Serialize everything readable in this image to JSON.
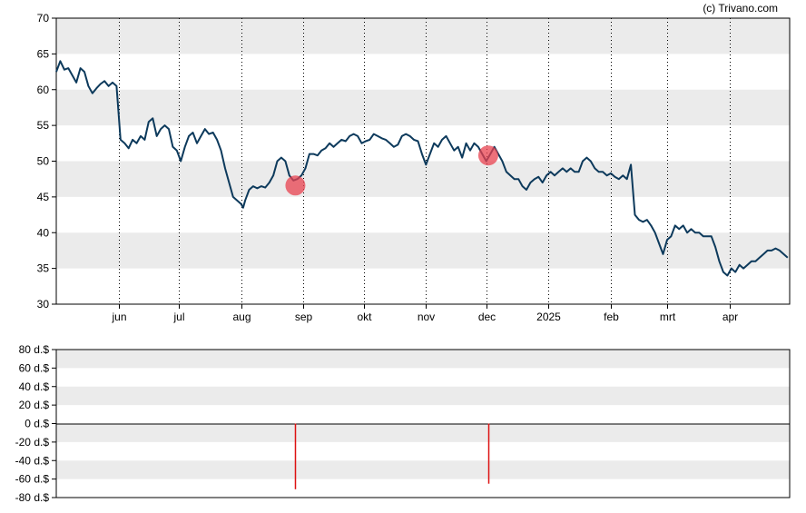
{
  "credit": "(c) Trivano.com",
  "colors": {
    "price_line": "#0d3a5c",
    "marker": "#e8414f",
    "band": "#ebebeb",
    "bar": "#dd1111",
    "grid": "#000000"
  },
  "chart_data": [
    {
      "type": "line",
      "title": "",
      "ylim": [
        30,
        70
      ],
      "yticks": [
        30,
        35,
        40,
        45,
        50,
        55,
        60,
        65,
        70
      ],
      "xlim": [
        0,
        365
      ],
      "month_ticks": [
        {
          "label": "jun",
          "x": 31
        },
        {
          "label": "jul",
          "x": 61
        },
        {
          "label": "aug",
          "x": 92
        },
        {
          "label": "sep",
          "x": 123
        },
        {
          "label": "okt",
          "x": 153
        },
        {
          "label": "nov",
          "x": 184
        },
        {
          "label": "dec",
          "x": 214
        },
        {
          "label": "2025",
          "x": 245
        },
        {
          "label": "feb",
          "x": 276
        },
        {
          "label": "mrt",
          "x": 304
        },
        {
          "label": "apr",
          "x": 335
        }
      ],
      "grid": "vertical dotted at month starts, horizontal alternating bands",
      "series": [
        {
          "values": [
            [
              0,
              62.5
            ],
            [
              2,
              64
            ],
            [
              4,
              62.8
            ],
            [
              6,
              63
            ],
            [
              8,
              62
            ],
            [
              10,
              61
            ],
            [
              12,
              63
            ],
            [
              14,
              62.5
            ],
            [
              16,
              60.5
            ],
            [
              18,
              59.5
            ],
            [
              20,
              60.2
            ],
            [
              22,
              60.8
            ],
            [
              24,
              61.2
            ],
            [
              26,
              60.5
            ],
            [
              28,
              61
            ],
            [
              30,
              60.5
            ],
            [
              32,
              53
            ],
            [
              34,
              52.5
            ],
            [
              36,
              51.8
            ],
            [
              38,
              53
            ],
            [
              40,
              52.5
            ],
            [
              42,
              53.5
            ],
            [
              44,
              53
            ],
            [
              46,
              55.5
            ],
            [
              48,
              56
            ],
            [
              50,
              53.5
            ],
            [
              52,
              54.5
            ],
            [
              54,
              55
            ],
            [
              56,
              54.5
            ],
            [
              58,
              52
            ],
            [
              60,
              51.5
            ],
            [
              62,
              50
            ],
            [
              64,
              52
            ],
            [
              66,
              53.5
            ],
            [
              68,
              54
            ],
            [
              70,
              52.5
            ],
            [
              72,
              53.5
            ],
            [
              74,
              54.5
            ],
            [
              76,
              53.8
            ],
            [
              78,
              54
            ],
            [
              80,
              53
            ],
            [
              82,
              51.5
            ],
            [
              84,
              49
            ],
            [
              86,
              47
            ],
            [
              88,
              45
            ],
            [
              90,
              44.5
            ],
            [
              92,
              44
            ],
            [
              93,
              43.5
            ],
            [
              94,
              44.5
            ],
            [
              96,
              46
            ],
            [
              98,
              46.5
            ],
            [
              100,
              46.2
            ],
            [
              102,
              46.5
            ],
            [
              104,
              46.3
            ],
            [
              106,
              47
            ],
            [
              108,
              48
            ],
            [
              110,
              50
            ],
            [
              112,
              50.5
            ],
            [
              114,
              50
            ],
            [
              116,
              48
            ],
            [
              118,
              47.3
            ],
            [
              120,
              47.5
            ],
            [
              122,
              48
            ],
            [
              124,
              49
            ],
            [
              126,
              51
            ],
            [
              128,
              51
            ],
            [
              130,
              50.8
            ],
            [
              132,
              51.5
            ],
            [
              134,
              51.8
            ],
            [
              136,
              52.5
            ],
            [
              138,
              52
            ],
            [
              140,
              52.5
            ],
            [
              142,
              53
            ],
            [
              144,
              52.8
            ],
            [
              146,
              53.5
            ],
            [
              148,
              53.8
            ],
            [
              150,
              53.5
            ],
            [
              152,
              52.5
            ],
            [
              154,
              52.8
            ],
            [
              156,
              53
            ],
            [
              158,
              53.8
            ],
            [
              160,
              53.5
            ],
            [
              162,
              53.2
            ],
            [
              164,
              53
            ],
            [
              166,
              52.5
            ],
            [
              168,
              52
            ],
            [
              170,
              52.3
            ],
            [
              172,
              53.5
            ],
            [
              174,
              53.8
            ],
            [
              176,
              53.5
            ],
            [
              178,
              53
            ],
            [
              180,
              52.8
            ],
            [
              182,
              51
            ],
            [
              184,
              49.5
            ],
            [
              186,
              51
            ],
            [
              188,
              52.5
            ],
            [
              190,
              52
            ],
            [
              192,
              53
            ],
            [
              194,
              53.5
            ],
            [
              196,
              52.5
            ],
            [
              198,
              51.5
            ],
            [
              200,
              52
            ],
            [
              202,
              50.5
            ],
            [
              204,
              52.5
            ],
            [
              206,
              51.5
            ],
            [
              208,
              52.5
            ],
            [
              210,
              52
            ],
            [
              212,
              51
            ],
            [
              214,
              50
            ],
            [
              216,
              51
            ],
            [
              218,
              52
            ],
            [
              220,
              51
            ],
            [
              222,
              50
            ],
            [
              224,
              48.5
            ],
            [
              226,
              48
            ],
            [
              228,
              47.5
            ],
            [
              230,
              47.5
            ],
            [
              232,
              46.5
            ],
            [
              234,
              46
            ],
            [
              236,
              47
            ],
            [
              238,
              47.5
            ],
            [
              240,
              47.8
            ],
            [
              242,
              47
            ],
            [
              244,
              48
            ],
            [
              246,
              48.5
            ],
            [
              248,
              48
            ],
            [
              250,
              48.5
            ],
            [
              252,
              49
            ],
            [
              254,
              48.5
            ],
            [
              256,
              49
            ],
            [
              258,
              48.5
            ],
            [
              260,
              48.5
            ],
            [
              262,
              50
            ],
            [
              264,
              50.5
            ],
            [
              266,
              50
            ],
            [
              268,
              49
            ],
            [
              270,
              48.5
            ],
            [
              272,
              48.5
            ],
            [
              274,
              48
            ],
            [
              276,
              48.3
            ],
            [
              278,
              47.8
            ],
            [
              280,
              47.5
            ],
            [
              282,
              48
            ],
            [
              284,
              47.5
            ],
            [
              286,
              49.5
            ],
            [
              288,
              42.5
            ],
            [
              290,
              41.8
            ],
            [
              292,
              41.5
            ],
            [
              294,
              41.8
            ],
            [
              296,
              41
            ],
            [
              298,
              40
            ],
            [
              300,
              38.5
            ],
            [
              302,
              37
            ],
            [
              304,
              39
            ],
            [
              306,
              39.5
            ],
            [
              308,
              41
            ],
            [
              310,
              40.5
            ],
            [
              312,
              41
            ],
            [
              314,
              40
            ],
            [
              316,
              40.5
            ],
            [
              318,
              40
            ],
            [
              320,
              40
            ],
            [
              322,
              39.5
            ],
            [
              324,
              39.5
            ],
            [
              326,
              39.5
            ],
            [
              328,
              38
            ],
            [
              330,
              36
            ],
            [
              332,
              34.5
            ],
            [
              334,
              34
            ],
            [
              336,
              35
            ],
            [
              338,
              34.5
            ],
            [
              340,
              35.5
            ],
            [
              342,
              35
            ],
            [
              344,
              35.5
            ],
            [
              346,
              36
            ],
            [
              348,
              36
            ],
            [
              350,
              36.5
            ],
            [
              352,
              37
            ],
            [
              354,
              37.5
            ],
            [
              356,
              37.5
            ],
            [
              358,
              37.8
            ],
            [
              360,
              37.5
            ],
            [
              362,
              37
            ],
            [
              364,
              36.5
            ]
          ]
        }
      ],
      "markers": [
        {
          "x": 119,
          "y": 46.6
        },
        {
          "x": 215,
          "y": 50.8
        }
      ]
    },
    {
      "type": "bar",
      "title": "",
      "ylim": [
        -80,
        80
      ],
      "yticks": [
        "80 d.$",
        "60 d.$",
        "40 d.$",
        "20 d.$",
        "0 d.$",
        "-20 d.$",
        "-40 d.$",
        "-60 d.$",
        "-80 d.$"
      ],
      "ytick_values": [
        80,
        60,
        40,
        20,
        0,
        -20,
        -40,
        -60,
        -80
      ],
      "bars": [
        {
          "x": 119,
          "value": -71
        },
        {
          "x": 215,
          "value": -65
        }
      ]
    }
  ]
}
